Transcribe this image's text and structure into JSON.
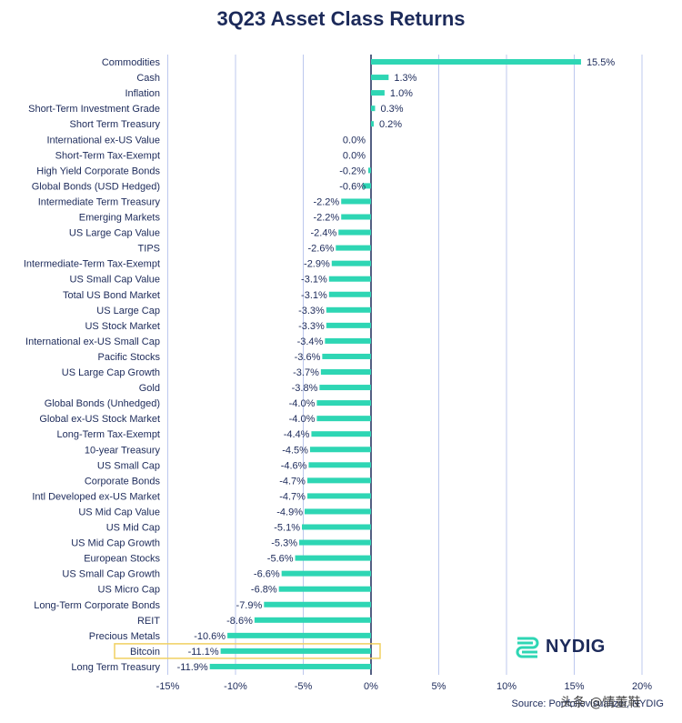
{
  "title": "3Q23 Asset Class Returns",
  "source": "Source: Portfoliovisualizer, NYDIG",
  "logo_text": "NYDIG",
  "watermark": "头条 @情董鞋",
  "colors": {
    "bar": "#2ed6b4",
    "grid": "#bcc8ee",
    "highlight": "#f0d060",
    "text": "#1c2a5a"
  },
  "chart_data": {
    "type": "bar",
    "orientation": "horizontal",
    "title": "3Q23 Asset Class Returns",
    "xlim": [
      -15,
      20
    ],
    "xticks": [
      -15,
      -10,
      -5,
      0,
      5,
      10,
      15,
      20
    ],
    "xtick_labels": [
      "-15%",
      "-10%",
      "-5%",
      "0%",
      "5%",
      "10%",
      "15%",
      "20%"
    ],
    "grid": true,
    "highlighted": "Bitcoin",
    "categories": [
      "Commodities",
      "Cash",
      "Inflation",
      "Short-Term Investment Grade",
      "Short Term Treasury",
      "International ex-US Value",
      "Short-Term Tax-Exempt",
      "High Yield Corporate Bonds",
      "Global Bonds (USD Hedged)",
      "Intermediate Term Treasury",
      "Emerging Markets",
      "US Large Cap Value",
      "TIPS",
      "Intermediate-Term Tax-Exempt",
      "US Small Cap Value",
      "Total US Bond Market",
      "US Large Cap",
      "US Stock Market",
      "International ex-US Small Cap",
      "Pacific Stocks",
      "US Large Cap Growth",
      "Gold",
      "Global Bonds (Unhedged)",
      "Global ex-US Stock Market",
      "Long-Term Tax-Exempt",
      "10-year Treasury",
      "US Small Cap",
      "Corporate Bonds",
      "Intl Developed ex-US Market",
      "US Mid Cap Value",
      "US Mid Cap",
      "US Mid Cap Growth",
      "European Stocks",
      "US Small Cap Growth",
      "US Micro Cap",
      "Long-Term Corporate Bonds",
      "REIT",
      "Precious Metals",
      "Bitcoin",
      "Long Term Treasury"
    ],
    "values": [
      15.5,
      1.3,
      1.0,
      0.3,
      0.2,
      0.0,
      0.0,
      -0.2,
      -0.6,
      -2.2,
      -2.2,
      -2.4,
      -2.6,
      -2.9,
      -3.1,
      -3.1,
      -3.3,
      -3.3,
      -3.4,
      -3.6,
      -3.7,
      -3.8,
      -4.0,
      -4.0,
      -4.4,
      -4.5,
      -4.6,
      -4.7,
      -4.7,
      -4.9,
      -5.1,
      -5.3,
      -5.6,
      -6.6,
      -6.8,
      -7.9,
      -8.6,
      -10.6,
      -11.1,
      -11.9
    ],
    "value_labels": [
      "15.5%",
      "1.3%",
      "1.0%",
      "0.3%",
      "0.2%",
      "0.0%",
      "0.0%",
      "-0.2%",
      "-0.6%",
      "-2.2%",
      "-2.2%",
      "-2.4%",
      "-2.6%",
      "-2.9%",
      "-3.1%",
      "-3.1%",
      "-3.3%",
      "-3.3%",
      "-3.4%",
      "-3.6%",
      "-3.7%",
      "-3.8%",
      "-4.0%",
      "-4.0%",
      "-4.4%",
      "-4.5%",
      "-4.6%",
      "-4.7%",
      "-4.7%",
      "-4.9%",
      "-5.1%",
      "-5.3%",
      "-5.6%",
      "-6.6%",
      "-6.8%",
      "-7.9%",
      "-8.6%",
      "-10.6%",
      "-11.1%",
      "-11.9%"
    ]
  }
}
